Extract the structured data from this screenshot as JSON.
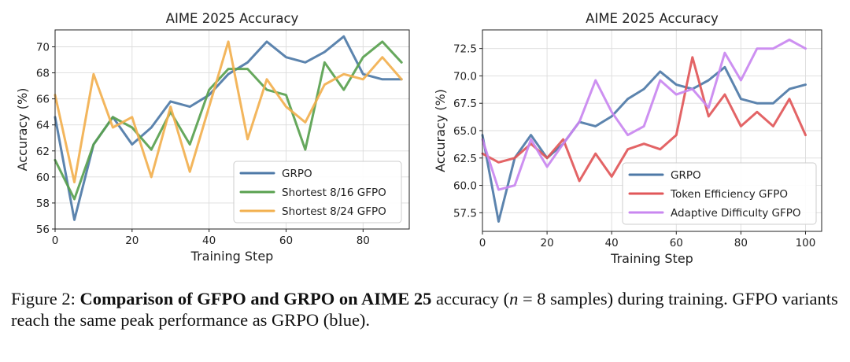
{
  "chart_data": [
    {
      "type": "line",
      "title": "AIME 2025 Accuracy",
      "xlabel": "Training Step",
      "ylabel": "Accuracy (%)",
      "xlim": [
        0,
        92
      ],
      "ylim": [
        56,
        71.3
      ],
      "xticks": [
        0,
        20,
        40,
        60,
        80
      ],
      "yticks": [
        56,
        58,
        60,
        62,
        64,
        66,
        68,
        70
      ],
      "grid": true,
      "legend": "bottom-right",
      "series": [
        {
          "name": "GRPO",
          "color": "#4e79a7",
          "x": [
            0,
            5,
            10,
            15,
            20,
            25,
            30,
            35,
            40,
            45,
            50,
            55,
            60,
            65,
            70,
            75,
            80,
            85,
            90
          ],
          "y": [
            64.6,
            56.7,
            62.5,
            64.6,
            62.5,
            63.8,
            65.8,
            65.4,
            66.3,
            67.9,
            68.8,
            70.4,
            69.2,
            68.8,
            69.6,
            70.8,
            67.9,
            67.5,
            67.5
          ]
        },
        {
          "name": "Shortest 8/16 GFPO",
          "color": "#59a14f",
          "x": [
            0,
            5,
            10,
            15,
            20,
            25,
            30,
            35,
            40,
            45,
            50,
            55,
            60,
            65,
            70,
            75,
            80,
            85,
            90
          ],
          "y": [
            61.3,
            58.3,
            62.5,
            64.6,
            63.8,
            62.1,
            65.0,
            62.5,
            66.7,
            68.3,
            68.3,
            66.7,
            66.3,
            62.1,
            68.8,
            66.7,
            69.2,
            70.4,
            68.8
          ]
        },
        {
          "name": "Shortest 8/24 GFPO",
          "color": "#f2b04f",
          "x": [
            0,
            5,
            10,
            15,
            20,
            25,
            30,
            35,
            40,
            45,
            50,
            55,
            60,
            65,
            70,
            75,
            80,
            85,
            90
          ],
          "y": [
            66.3,
            59.6,
            67.9,
            63.8,
            64.6,
            60.0,
            65.4,
            60.4,
            65.4,
            70.4,
            62.9,
            67.5,
            65.4,
            64.2,
            67.1,
            67.9,
            67.5,
            69.2,
            67.5
          ]
        }
      ]
    },
    {
      "type": "line",
      "title": "AIME 2025 Accuracy",
      "xlabel": "Training Step",
      "ylabel": "Accuracy (%)",
      "xlim": [
        0,
        105
      ],
      "ylim": [
        55.8,
        74.2
      ],
      "xticks": [
        0,
        20,
        40,
        60,
        80,
        100
      ],
      "yticks": [
        57.5,
        60.0,
        62.5,
        65.0,
        67.5,
        70.0,
        72.5
      ],
      "ytick_labels": [
        "57.5",
        "60.0",
        "62.5",
        "65.0",
        "67.5",
        "70.0",
        "72.5"
      ],
      "grid": true,
      "legend": "bottom-right",
      "series": [
        {
          "name": "GRPO",
          "color": "#4e79a7",
          "x": [
            0,
            5,
            10,
            15,
            20,
            25,
            30,
            35,
            40,
            45,
            50,
            55,
            60,
            65,
            70,
            75,
            80,
            85,
            90,
            95,
            100
          ],
          "y": [
            64.6,
            56.7,
            62.5,
            64.6,
            62.5,
            63.8,
            65.8,
            65.4,
            66.3,
            67.9,
            68.8,
            70.4,
            69.2,
            68.8,
            69.6,
            70.8,
            67.9,
            67.5,
            67.5,
            68.8,
            69.2
          ]
        },
        {
          "name": "Token Efficiency GFPO",
          "color": "#e15759",
          "x": [
            0,
            5,
            10,
            15,
            20,
            25,
            30,
            35,
            40,
            45,
            50,
            55,
            60,
            65,
            70,
            75,
            80,
            85,
            90,
            95,
            100
          ],
          "y": [
            62.9,
            62.1,
            62.5,
            63.8,
            62.5,
            64.2,
            60.4,
            62.9,
            60.8,
            63.3,
            63.8,
            63.3,
            64.6,
            71.7,
            66.3,
            68.3,
            65.4,
            66.7,
            65.4,
            67.9,
            64.6
          ]
        },
        {
          "name": "Adaptive Difficulty GFPO",
          "color": "#c987f0",
          "x": [
            0,
            5,
            10,
            15,
            20,
            25,
            30,
            35,
            40,
            45,
            50,
            55,
            60,
            65,
            70,
            75,
            80,
            85,
            90,
            95,
            100
          ],
          "y": [
            64.2,
            59.6,
            60.0,
            64.2,
            61.7,
            63.8,
            65.8,
            69.6,
            66.7,
            64.6,
            65.4,
            69.6,
            68.3,
            68.8,
            67.1,
            72.1,
            69.6,
            72.5,
            72.5,
            73.3,
            72.5
          ]
        }
      ]
    }
  ],
  "caption": {
    "prefix": "Figure 2: ",
    "bold": "Comparison of GFPO and GRPO on AIME 25",
    "after_bold": " accuracy (",
    "var": "n",
    "after_var": " = 8 samples) during training. GFPO variants reach the same peak performance as GRPO (blue)."
  }
}
